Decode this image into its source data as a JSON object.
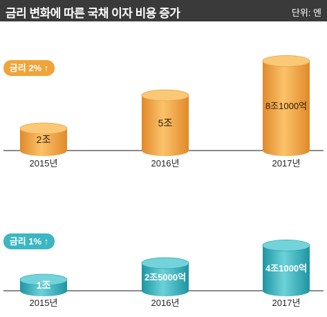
{
  "header": {
    "title": "금리 변화에 따른 국채 이자 비용 증가",
    "unit": "단위: 엔"
  },
  "colors": {
    "orange": "#f0a43a",
    "teal": "#3cb6c2"
  },
  "chart_data": [
    {
      "type": "bar",
      "badge": "금리 2% ↑",
      "color": "orange",
      "categories": [
        "2015년",
        "2016년",
        "2017년"
      ],
      "values": [
        2,
        5,
        8.1
      ],
      "labels": [
        "2조",
        "5조",
        "8조1000억"
      ]
    },
    {
      "type": "bar",
      "badge": "금리 1% ↑",
      "color": "teal",
      "categories": [
        "2015년",
        "2016년",
        "2017년"
      ],
      "values": [
        1,
        2.5,
        4.1
      ],
      "labels": [
        "1조",
        "2조5000억",
        "4조1000억"
      ]
    }
  ]
}
